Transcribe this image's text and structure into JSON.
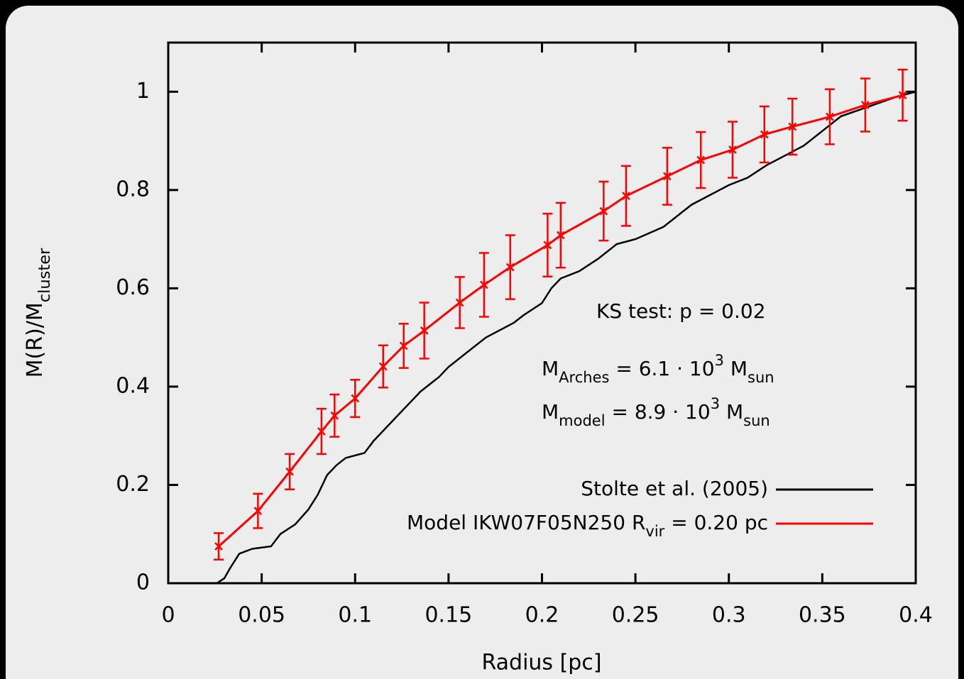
{
  "chart_data": {
    "type": "line",
    "xlabel": "Radius [pc]",
    "ylabel": [
      {
        "text": "M(R)/M"
      },
      {
        "text": "cluster",
        "shift": "sub"
      }
    ],
    "xlim": [
      0,
      0.4
    ],
    "ylim": [
      0,
      1.1
    ],
    "xticks": [
      0,
      0.05,
      0.1,
      0.15,
      0.2,
      0.25,
      0.3,
      0.35,
      0.4
    ],
    "yticks": [
      0,
      0.2,
      0.4,
      0.6,
      0.8,
      1
    ],
    "legend": "lower right",
    "series": [
      {
        "name": "Stolte et al. (2005)",
        "color": "#000000",
        "x": [
          0.026,
          0.03,
          0.033,
          0.038,
          0.045,
          0.055,
          0.06,
          0.068,
          0.075,
          0.08,
          0.085,
          0.09,
          0.095,
          0.105,
          0.11,
          0.12,
          0.125,
          0.13,
          0.135,
          0.145,
          0.15,
          0.16,
          0.17,
          0.185,
          0.19,
          0.2,
          0.205,
          0.21,
          0.22,
          0.23,
          0.24,
          0.25,
          0.265,
          0.28,
          0.29,
          0.3,
          0.31,
          0.32,
          0.33,
          0.34,
          0.35,
          0.36,
          0.375,
          0.39,
          0.4
        ],
        "y": [
          0,
          0.01,
          0.03,
          0.06,
          0.07,
          0.075,
          0.1,
          0.12,
          0.15,
          0.18,
          0.22,
          0.24,
          0.255,
          0.265,
          0.29,
          0.33,
          0.35,
          0.37,
          0.39,
          0.42,
          0.44,
          0.47,
          0.5,
          0.53,
          0.545,
          0.57,
          0.6,
          0.62,
          0.635,
          0.66,
          0.69,
          0.7,
          0.725,
          0.77,
          0.79,
          0.81,
          0.825,
          0.85,
          0.87,
          0.89,
          0.92,
          0.95,
          0.97,
          0.99,
          1.0
        ]
      },
      {
        "name": [
          {
            "text": "Model IKW07F05N250 R"
          },
          {
            "text": "vir",
            "shift": "sub"
          },
          {
            "text": " = 0.20 pc"
          }
        ],
        "color": "#ff0000",
        "x": [
          0.027,
          0.048,
          0.065,
          0.082,
          0.089,
          0.1,
          0.115,
          0.126,
          0.137,
          0.156,
          0.169,
          0.183,
          0.203,
          0.21,
          0.233,
          0.245,
          0.267,
          0.285,
          0.302,
          0.319,
          0.334,
          0.354,
          0.373,
          0.393
        ],
        "y": [
          0.075,
          0.147,
          0.227,
          0.309,
          0.341,
          0.376,
          0.441,
          0.483,
          0.514,
          0.571,
          0.607,
          0.643,
          0.688,
          0.708,
          0.757,
          0.788,
          0.828,
          0.861,
          0.882,
          0.913,
          0.929,
          0.949,
          0.973,
          0.993
        ],
        "errors": [
          0.027,
          0.035,
          0.036,
          0.046,
          0.043,
          0.038,
          0.043,
          0.045,
          0.057,
          0.052,
          0.065,
          0.065,
          0.064,
          0.066,
          0.06,
          0.061,
          0.058,
          0.057,
          0.057,
          0.057,
          0.057,
          0.056,
          0.054,
          0.052
        ]
      }
    ],
    "annotations": [
      [
        {
          "text": "KS test:  p =  0.02"
        }
      ],
      [
        {
          "text": "M"
        },
        {
          "text": "Arches",
          "shift": "sub"
        },
        {
          "text": " =  6.1 · 10"
        },
        {
          "text": "3",
          "shift": "super"
        },
        {
          "text": " M"
        },
        {
          "text": "sun",
          "shift": "sub"
        }
      ],
      [
        {
          "text": "M"
        },
        {
          "text": "model",
          "shift": "sub"
        },
        {
          "text": "  =  8.9 · 10"
        },
        {
          "text": "3",
          "shift": "super"
        },
        {
          "text": " M"
        },
        {
          "text": "sun",
          "shift": "sub"
        }
      ]
    ]
  }
}
